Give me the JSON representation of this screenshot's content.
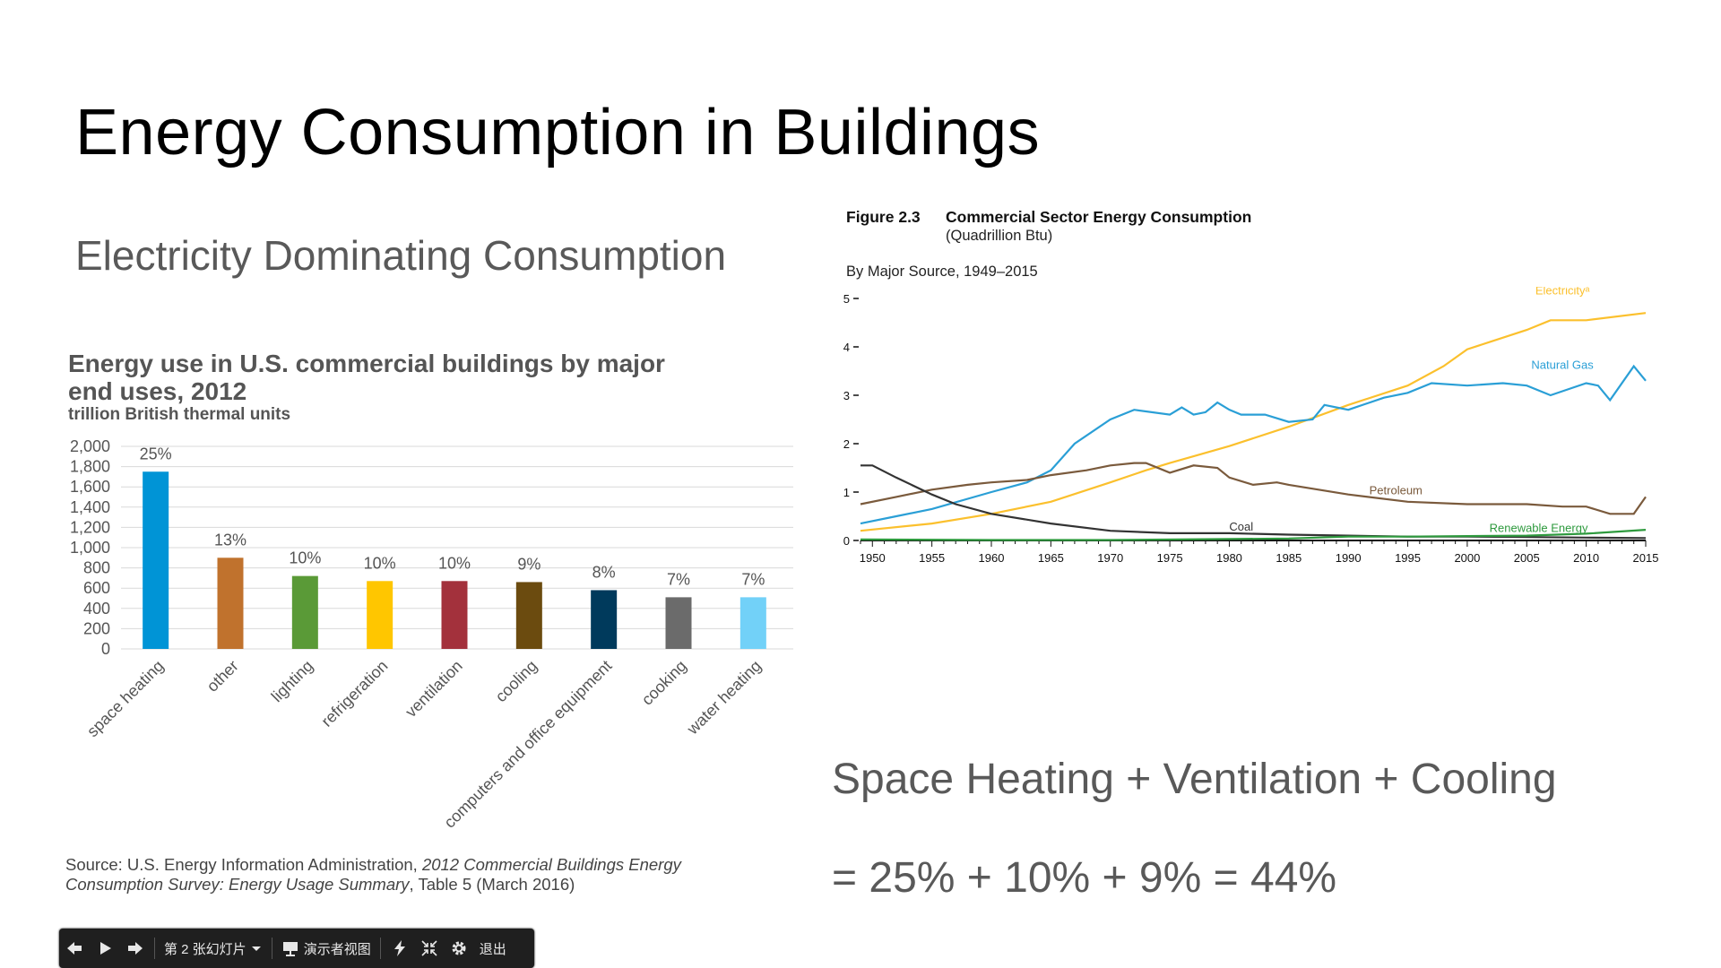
{
  "slide": {
    "title": "Energy Consumption in Buildings",
    "subtitle": "Electricity Dominating Consumption",
    "formula_line1": "Space Heating + Ventilation + Cooling",
    "formula_line2": "= 25% + 10% + 9% = 44%"
  },
  "left_chart": {
    "title": "Energy use in U.S. commercial buildings by major end uses, 2012",
    "units": "trillion British thermal units",
    "source_prefix": "Source: U.S. Energy Information Administration, ",
    "source_italic": "2012 Commercial Buildings Energy Consumption Survey: Energy Usage Summary",
    "source_suffix": ", Table 5 (March 2016)"
  },
  "right_chart": {
    "figure_label": "Figure 2.3",
    "title": "Commercial Sector Energy Consumption",
    "units": "(Quadrillion Btu)",
    "by_label": "By Major Source, 1949–2015"
  },
  "chart_data": [
    {
      "type": "bar",
      "title": "Energy use in U.S. commercial buildings by major end uses, 2012",
      "ylabel": "trillion British thermal units",
      "categories": [
        "space heating",
        "other",
        "lighting",
        "refrigeration",
        "ventilation",
        "cooling",
        "computers and office equipment",
        "cooking",
        "water heating"
      ],
      "values": [
        1750,
        900,
        720,
        670,
        670,
        660,
        580,
        510,
        510
      ],
      "data_labels": [
        "25%",
        "13%",
        "10%",
        "10%",
        "10%",
        "9%",
        "8%",
        "7%",
        "7%"
      ],
      "colors": [
        "#0094d6",
        "#c0722d",
        "#5a9a37",
        "#ffc600",
        "#a3313c",
        "#6b4b0f",
        "#003a5c",
        "#6b6b6b",
        "#72d1f8"
      ],
      "yticks": [
        "2,000",
        "1,800",
        "1,600",
        "1,400",
        "1,200",
        "1,000",
        "800",
        "600",
        "400",
        "200",
        "0"
      ],
      "ylim": [
        0,
        2000
      ],
      "grid": true
    },
    {
      "type": "line",
      "title": "Commercial Sector Energy Consumption",
      "ylabel": "(Quadrillion Btu)",
      "xlim": [
        1949,
        2015
      ],
      "ylim": [
        0,
        5
      ],
      "xticks": [
        "1950",
        "1955",
        "1960",
        "1965",
        "1970",
        "1975",
        "1980",
        "1985",
        "1990",
        "1995",
        "2000",
        "2005",
        "2010",
        "2015"
      ],
      "yticks": [
        "0",
        "1",
        "2",
        "3",
        "4",
        "5"
      ],
      "series": [
        {
          "name": "Electricity",
          "color": "#fbc02d",
          "x": [
            1949,
            1955,
            1960,
            1965,
            1970,
            1973,
            1975,
            1980,
            1985,
            1990,
            1995,
            1998,
            2000,
            2005,
            2007,
            2010,
            2015
          ],
          "y": [
            0.2,
            0.35,
            0.55,
            0.8,
            1.2,
            1.45,
            1.6,
            1.95,
            2.35,
            2.8,
            3.2,
            3.6,
            3.95,
            4.35,
            4.55,
            4.55,
            4.7
          ]
        },
        {
          "name": "Natural Gas",
          "color": "#2a9fd6",
          "x": [
            1949,
            1952,
            1955,
            1960,
            1963,
            1965,
            1967,
            1970,
            1972,
            1975,
            1976,
            1977,
            1978,
            1979,
            1980,
            1981,
            1983,
            1985,
            1987,
            1988,
            1990,
            1993,
            1995,
            1997,
            2000,
            2003,
            2005,
            2007,
            2010,
            2011,
            2012,
            2014,
            2015
          ],
          "y": [
            0.35,
            0.5,
            0.65,
            1.0,
            1.2,
            1.45,
            2.0,
            2.5,
            2.7,
            2.6,
            2.75,
            2.6,
            2.65,
            2.85,
            2.7,
            2.6,
            2.6,
            2.45,
            2.5,
            2.8,
            2.7,
            2.95,
            3.05,
            3.25,
            3.2,
            3.25,
            3.2,
            3.0,
            3.25,
            3.2,
            2.9,
            3.6,
            3.3
          ]
        },
        {
          "name": "Petroleum",
          "color": "#7a5a3c",
          "x": [
            1949,
            1952,
            1955,
            1958,
            1960,
            1963,
            1965,
            1968,
            1970,
            1972,
            1973,
            1975,
            1977,
            1979,
            1980,
            1982,
            1984,
            1985,
            1990,
            1995,
            2000,
            2005,
            2008,
            2010,
            2012,
            2014,
            2015
          ],
          "y": [
            0.75,
            0.9,
            1.05,
            1.15,
            1.2,
            1.25,
            1.35,
            1.45,
            1.55,
            1.6,
            1.6,
            1.4,
            1.55,
            1.5,
            1.3,
            1.15,
            1.2,
            1.15,
            0.95,
            0.8,
            0.75,
            0.75,
            0.7,
            0.7,
            0.55,
            0.55,
            0.9
          ]
        },
        {
          "name": "Coal",
          "color": "#333333",
          "x": [
            1949,
            1950,
            1952,
            1955,
            1957,
            1960,
            1965,
            1970,
            1975,
            1980,
            1985,
            1990,
            1995,
            2000,
            2005,
            2010,
            2015
          ],
          "y": [
            1.55,
            1.55,
            1.3,
            0.95,
            0.75,
            0.55,
            0.35,
            0.2,
            0.15,
            0.15,
            0.12,
            0.1,
            0.08,
            0.08,
            0.07,
            0.06,
            0.05
          ]
        },
        {
          "name": "Renewable Energy",
          "color": "#2e9a3e",
          "x": [
            1949,
            1960,
            1970,
            1980,
            1985,
            1990,
            1995,
            2000,
            2005,
            2010,
            2015
          ],
          "y": [
            0.02,
            0.01,
            0.01,
            0.03,
            0.04,
            0.08,
            0.08,
            0.09,
            0.1,
            0.14,
            0.22
          ]
        }
      ],
      "series_label_text": {
        "electricity": "Electricityᵃ"
      },
      "grid": false
    }
  ],
  "toolbar": {
    "prev_icon": "arrow-left-icon",
    "play_icon": "play-icon",
    "next_icon": "arrow-right-icon",
    "slide_label": "第 2 张幻灯片",
    "presenter_label": "演示者视图",
    "exit_label": "退出"
  }
}
